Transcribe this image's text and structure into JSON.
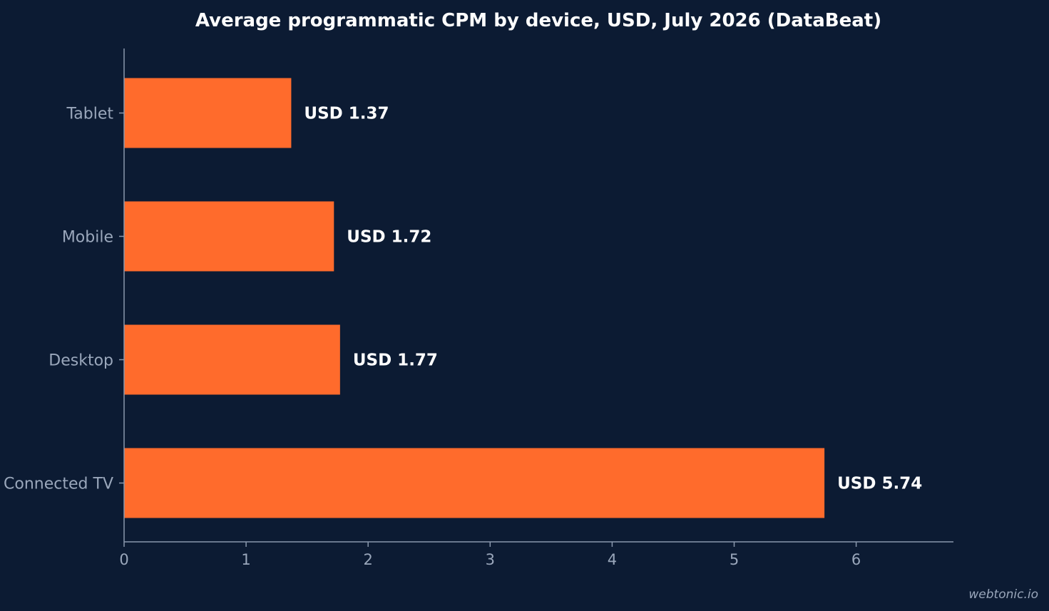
{
  "chart_data": {
    "type": "bar",
    "orientation": "horizontal",
    "title": "Average programmatic CPM by device, USD, July 2026 (DataBeat)",
    "categories": [
      "Tablet",
      "Mobile",
      "Desktop",
      "Connected TV"
    ],
    "values": [
      1.37,
      1.72,
      1.77,
      5.74
    ],
    "data_labels": [
      "USD 1.37",
      "USD 1.72",
      "USD 1.77",
      "USD 5.74"
    ],
    "xlabel": "",
    "ylabel": "",
    "xlim": [
      0,
      6.8
    ],
    "xticks": [
      0,
      1,
      2,
      3,
      4,
      5,
      6
    ],
    "grid": false,
    "legend": "none"
  },
  "colors": {
    "background": "#0c1b33",
    "bar": "#ff6b2c",
    "axis": "#8a98ad",
    "text_muted": "#9aa7bb",
    "text_strong": "#ffffff"
  },
  "watermark": "webtonic.io"
}
